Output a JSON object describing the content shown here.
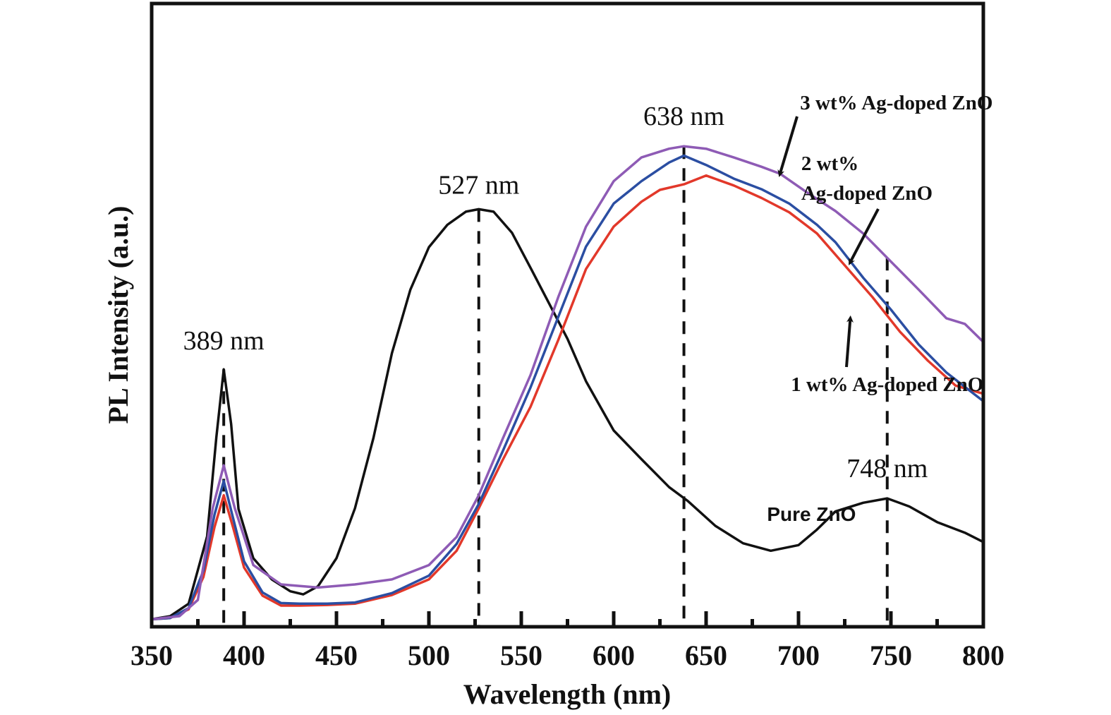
{
  "chart_data": {
    "type": "line",
    "title": "",
    "xlabel": "Wavelength (nm)",
    "ylabel": "PL Intensity (a.u.)",
    "xlim": [
      350,
      800
    ],
    "ylim": [
      0,
      100
    ],
    "x_ticks": [
      350,
      400,
      450,
      500,
      550,
      600,
      650,
      700,
      750,
      800
    ],
    "x_minor_ticks": [
      375,
      425,
      475,
      525,
      575,
      625,
      675,
      725,
      775
    ],
    "y_ticks": [],
    "grid": false,
    "legend": "none (inline annotations)",
    "series": [
      {
        "name": "Pure ZnO",
        "color": "#111111",
        "x": [
          350,
          360,
          370,
          380,
          385,
          389,
          393,
          397,
          405,
          415,
          425,
          432,
          440,
          450,
          460,
          470,
          480,
          490,
          500,
          510,
          520,
          527,
          535,
          545,
          555,
          565,
          575,
          585,
          600,
          615,
          630,
          640,
          655,
          670,
          685,
          700,
          710,
          720,
          735,
          748,
          760,
          775,
          790,
          800
        ],
        "y": [
          1.2,
          1.7,
          3.7,
          14.5,
          30.4,
          41.3,
          32.5,
          18.9,
          11.0,
          7.6,
          5.7,
          5.2,
          6.5,
          11.0,
          19.0,
          30.3,
          43.9,
          54.1,
          60.9,
          64.5,
          66.6,
          67.0,
          66.6,
          63.2,
          57.6,
          51.9,
          46.2,
          39.4,
          31.5,
          26.9,
          22.4,
          20.2,
          16.2,
          13.4,
          12.2,
          13.1,
          15.6,
          18.5,
          19.9,
          20.6,
          19.3,
          16.8,
          15.1,
          13.6
        ]
      },
      {
        "name": "1 wt% Ag-doped ZnO",
        "color": "#e2382a",
        "x": [
          350,
          360,
          370,
          378,
          384,
          389,
          394,
          400,
          410,
          420,
          430,
          445,
          460,
          480,
          500,
          515,
          527,
          540,
          555,
          570,
          585,
          600,
          615,
          625,
          638,
          650,
          665,
          680,
          695,
          710,
          725,
          740,
          755,
          770,
          785,
          800
        ],
        "y": [
          1.2,
          1.4,
          2.8,
          8.0,
          16.0,
          21.1,
          16.0,
          9.5,
          5.0,
          3.4,
          3.4,
          3.5,
          3.7,
          5.1,
          7.6,
          12.2,
          19.0,
          26.8,
          35.3,
          46.0,
          57.4,
          64.2,
          68.2,
          70.1,
          71.0,
          72.4,
          70.8,
          68.8,
          66.5,
          63.1,
          58.0,
          52.9,
          47.3,
          42.7,
          38.7,
          37.4
        ]
      },
      {
        "name": "2 wt% Ag-doped ZnO",
        "color": "#2b4ea2",
        "x": [
          350,
          360,
          370,
          378,
          384,
          389,
          394,
          400,
          410,
          420,
          430,
          445,
          460,
          480,
          500,
          515,
          527,
          540,
          555,
          570,
          585,
          600,
          615,
          630,
          638,
          650,
          665,
          680,
          695,
          710,
          720,
          735,
          750,
          765,
          780,
          800
        ],
        "y": [
          1.2,
          1.4,
          3.0,
          9.0,
          18.0,
          23.4,
          17.5,
          10.5,
          5.5,
          3.8,
          3.7,
          3.7,
          3.9,
          5.4,
          8.2,
          13.3,
          19.7,
          28.2,
          38.4,
          49.7,
          61.0,
          67.9,
          71.5,
          74.5,
          75.6,
          74.1,
          71.9,
          70.2,
          67.9,
          64.5,
          61.7,
          56.0,
          50.9,
          45.3,
          40.8,
          36.2
        ]
      },
      {
        "name": "3 wt% Ag-doped ZnO",
        "color": "#8e5bb5",
        "x": [
          350,
          365,
          375,
          383,
          389,
          395,
          405,
          420,
          440,
          460,
          480,
          500,
          515,
          527,
          540,
          555,
          570,
          585,
          600,
          615,
          630,
          638,
          650,
          665,
          680,
          690,
          705,
          720,
          735,
          750,
          765,
          780,
          790,
          800
        ],
        "y": [
          1.2,
          1.7,
          4.3,
          19.0,
          25.9,
          19.0,
          9.9,
          6.8,
          6.3,
          6.8,
          7.6,
          9.9,
          14.4,
          21.1,
          30.2,
          40.4,
          52.9,
          64.2,
          71.5,
          75.3,
          76.7,
          77.1,
          76.7,
          75.3,
          73.8,
          72.7,
          69.6,
          66.7,
          63.1,
          58.6,
          54.1,
          49.5,
          48.6,
          45.7
        ]
      }
    ],
    "reference_lines": [
      {
        "x": 389,
        "style": "dashed"
      },
      {
        "x": 527,
        "style": "dashed"
      },
      {
        "x": 638,
        "style": "dashed"
      },
      {
        "x": 748,
        "style": "dashed"
      }
    ],
    "annotations": [
      {
        "text": "389 nm",
        "x": 389,
        "y": 44.5,
        "style": "peak"
      },
      {
        "text": "527 nm",
        "x": 527,
        "y": 69.5,
        "style": "peak"
      },
      {
        "text": "638 nm",
        "x": 638,
        "y": 80.5,
        "style": "peak"
      },
      {
        "text": "748 nm",
        "x": 748,
        "y": 24.0,
        "style": "peak"
      },
      {
        "text": "Pure ZnO",
        "x": 707,
        "y": 17.0,
        "style": "sans"
      },
      {
        "text": "3 wt% Ag-doped ZnO",
        "x": 753,
        "y": 83.0,
        "style": "series",
        "arrow_to": [
          690,
          72.7
        ]
      },
      {
        "text": "2 wt%",
        "x": 717,
        "y": 73.3,
        "style": "series"
      },
      {
        "text": "Ag-doped ZnO",
        "x": 737,
        "y": 68.5,
        "style": "series",
        "arrow_to": [
          728,
          58.5
        ]
      },
      {
        "text": "1 wt% Ag-doped ZnO",
        "x": 748,
        "y": 37.8,
        "style": "series",
        "arrow_to": [
          728,
          49.4
        ]
      }
    ]
  }
}
